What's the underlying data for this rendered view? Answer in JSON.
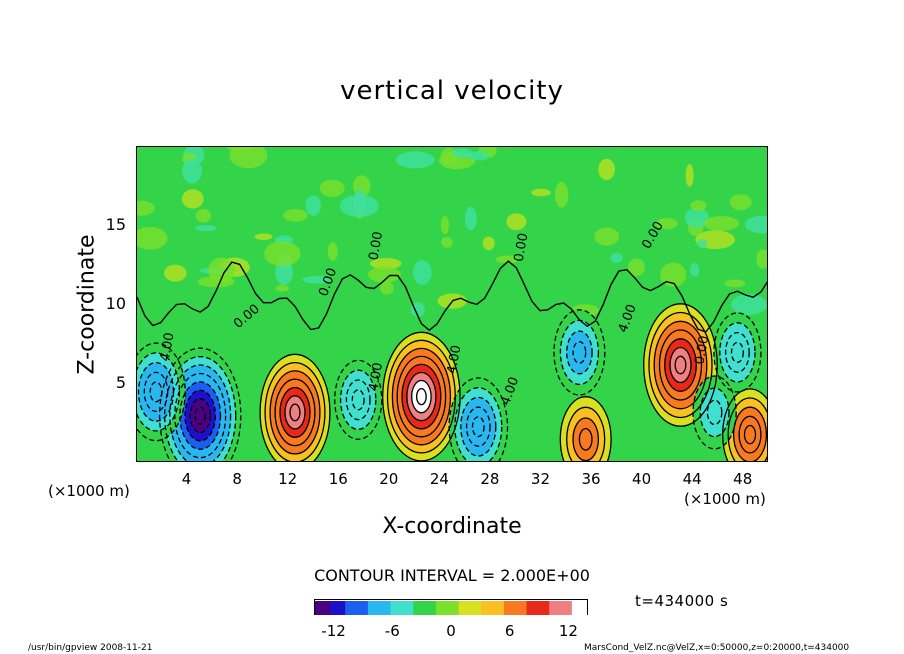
{
  "chart_data": {
    "type": "heatmap",
    "title": "vertical velocity",
    "xlabel": "X-coordinate",
    "ylabel": "Z-coordinate",
    "x_unit": "(×1000 m)",
    "y_unit": "(×1000 m)",
    "xlim": [
      0,
      50
    ],
    "ylim": [
      0,
      20
    ],
    "x_ticks": [
      "4",
      "8",
      "12",
      "16",
      "20",
      "24",
      "28",
      "32",
      "36",
      "40",
      "44",
      "48"
    ],
    "y_ticks": [
      "5",
      "10",
      "15"
    ],
    "contour_interval_text": "CONTOUR INTERVAL = 2.000E+00",
    "contour_labels": [
      "0.00",
      "4.00"
    ],
    "colorbar": {
      "ticks": [
        "-12",
        "-6",
        "0",
        "6",
        "12"
      ],
      "range": [
        -14,
        14
      ],
      "colors": [
        "#4b0082",
        "#1e10c8",
        "#1a5ff0",
        "#29b7f0",
        "#3fe0d0",
        "#34d44a",
        "#7ae02a",
        "#d8e020",
        "#f8c020",
        "#f87a20",
        "#e82818",
        "#f08080",
        "#ffffff"
      ]
    },
    "features": [
      {
        "x": 5,
        "z": 3,
        "value": -14
      },
      {
        "x": 1.5,
        "z": 4.5,
        "value": -8
      },
      {
        "x": 12.5,
        "z": 3.2,
        "value": 11
      },
      {
        "x": 17.5,
        "z": 4,
        "value": -5
      },
      {
        "x": 22.5,
        "z": 4.2,
        "value": 13
      },
      {
        "x": 27,
        "z": 2.3,
        "value": -8
      },
      {
        "x": 35,
        "z": 7,
        "value": -6
      },
      {
        "x": 43,
        "z": 6.2,
        "value": 12
      },
      {
        "x": 35.5,
        "z": 1.5,
        "value": 6
      },
      {
        "x": 48.5,
        "z": 1.8,
        "value": 7
      },
      {
        "x": 45.7,
        "z": 3.2,
        "value": -4
      },
      {
        "x": 47.5,
        "z": 7,
        "value": -5
      }
    ]
  },
  "time_label": "t=434000 s",
  "footer_left": "/usr/bin/gpview   2008-11-21",
  "footer_right": "MarsCond_VelZ.nc@VelZ,x=0:50000,z=0:20000,t=434000"
}
